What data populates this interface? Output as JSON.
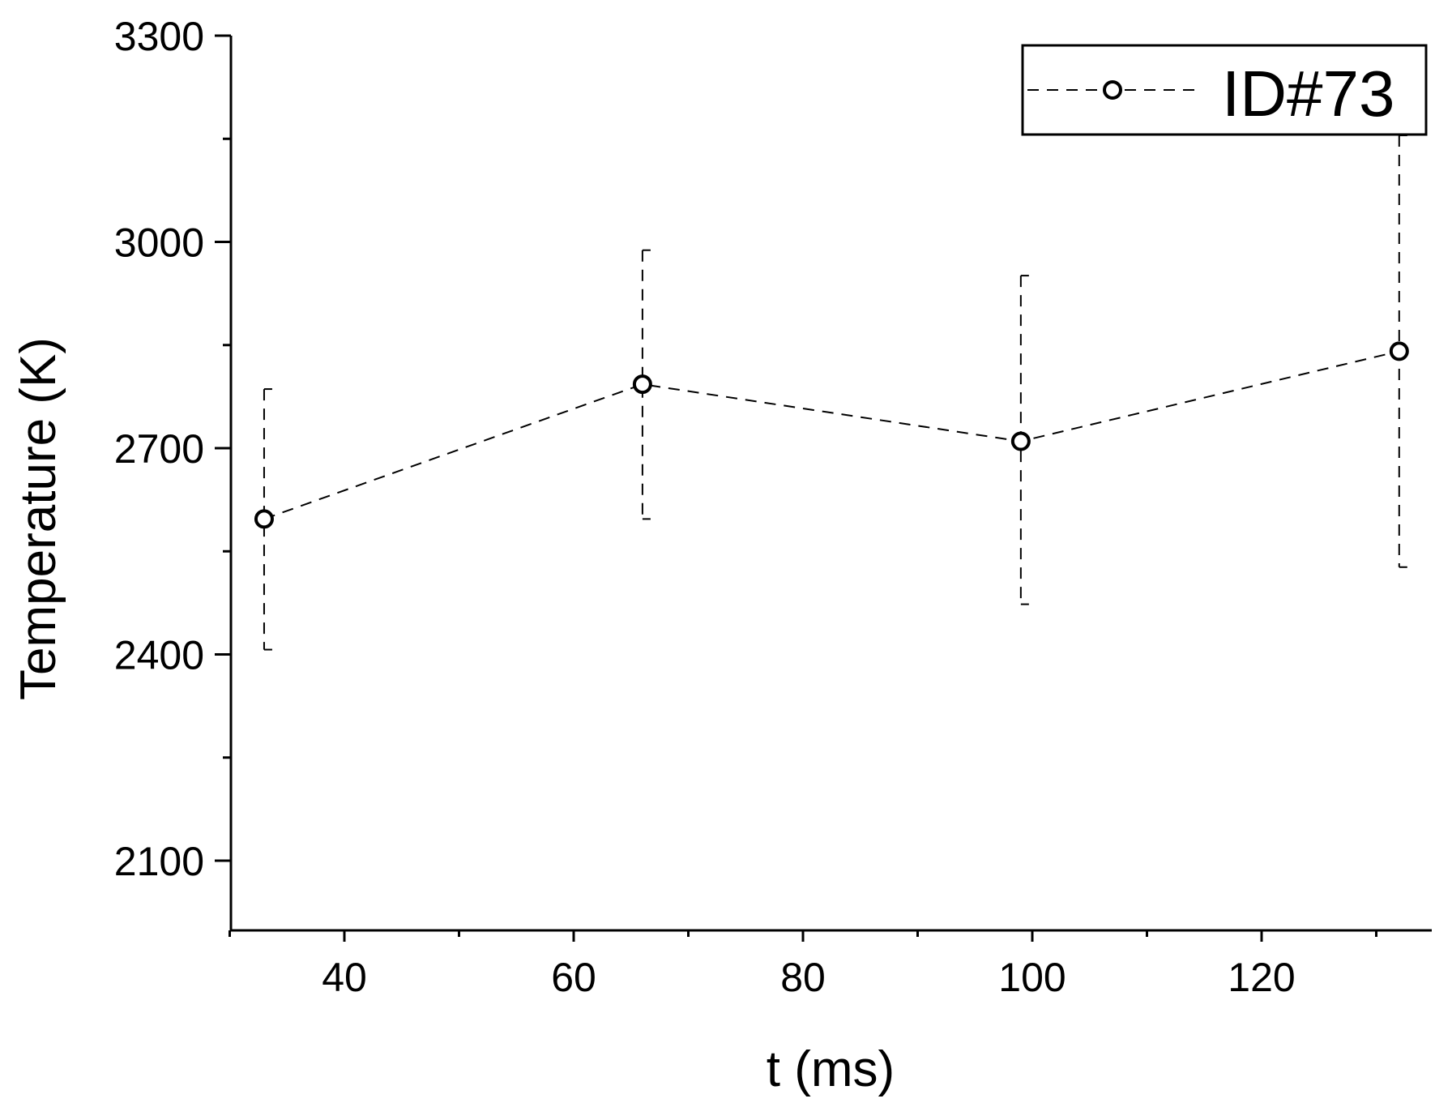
{
  "chart_data": {
    "type": "scatter",
    "title": "",
    "xlabel": "t (ms)",
    "ylabel": "Temperature (K)",
    "xlim": [
      30,
      135
    ],
    "ylim": [
      2000,
      3300
    ],
    "x_ticks": [
      40,
      60,
      80,
      100,
      120
    ],
    "x_tick_labels": [
      "40",
      "60",
      "80",
      "100",
      "120"
    ],
    "x_minor_ticks": [
      30,
      50,
      70,
      90,
      110,
      130
    ],
    "y_ticks": [
      2100,
      2400,
      2700,
      3000,
      3300
    ],
    "y_tick_labels": [
      "2100",
      "2400",
      "2700",
      "3000",
      "3300"
    ],
    "y_minor_ticks": [
      2250,
      2550,
      2850,
      3150
    ],
    "grid": false,
    "legend_position": "top-right",
    "series": [
      {
        "name": "ID#73",
        "line_style": "dashed",
        "marker": "open-circle",
        "color": "#000000",
        "x": [
          33,
          66,
          99,
          132
        ],
        "y": [
          2597,
          2793,
          2710,
          2841
        ],
        "error_low": [
          2407,
          2597,
          2473,
          2527
        ],
        "error_high": [
          2786,
          2988,
          2951,
          3155
        ]
      }
    ]
  }
}
